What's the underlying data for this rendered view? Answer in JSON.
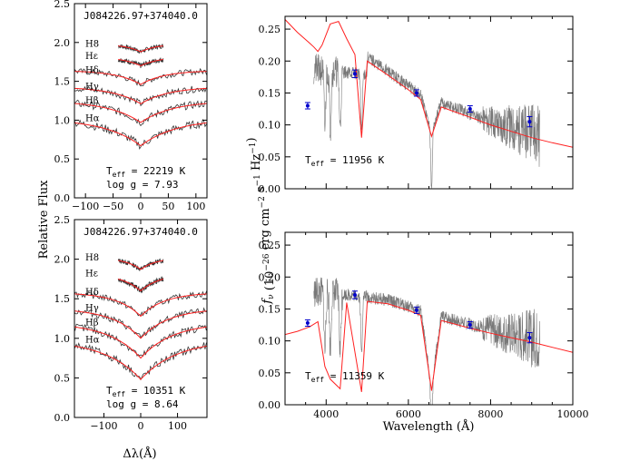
{
  "colors": {
    "model": "#ff2020",
    "spectrum": "#777777",
    "photometry": "#0000cc",
    "frame": "#000000"
  },
  "figure": {
    "shared_ylabel_left": "Relative Flux",
    "shared_xlabel_left": "Δλ(Å)",
    "ylabel_right": "f_ν (10^-26 erg cm^-2 s^-1 Hz^-1)",
    "xlabel_right": "Wavelength (Å)"
  },
  "chart_data": [
    {
      "type": "line",
      "panel": "top-left",
      "object": "J084226.97+374040.0",
      "line_labels": [
        "H8",
        "Hε",
        "Hδ",
        "Hγ",
        "Hβ",
        "Hα"
      ],
      "offsets": [
        1.98,
        1.82,
        1.64,
        1.43,
        1.25,
        1.02
      ],
      "teff_text": "T_eff = 22219 K",
      "logg_text": "log g = 7.93",
      "xlim": [
        -120,
        120
      ],
      "ylim": [
        0.0,
        2.5
      ],
      "xticks": [
        -100,
        -50,
        0,
        50,
        100
      ],
      "yticks": [
        0.0,
        0.5,
        1.0,
        1.5,
        2.0,
        2.5
      ],
      "depth": [
        0.1,
        0.12,
        0.18,
        0.22,
        0.28,
        0.35
      ]
    },
    {
      "type": "line",
      "panel": "bottom-left",
      "object": "J084226.97+374040.0",
      "line_labels": [
        "H8",
        "Hε",
        "Hδ",
        "Hγ",
        "Hβ",
        "Hα"
      ],
      "offsets": [
        2.02,
        1.82,
        1.58,
        1.38,
        1.2,
        0.98
      ],
      "teff_text": "T_eff = 10351 K",
      "logg_text": "log g = 8.64",
      "xlim": [
        -180,
        180
      ],
      "ylim": [
        0.0,
        2.5
      ],
      "xticks": [
        -100,
        0,
        100
      ],
      "yticks": [
        0.0,
        0.5,
        1.0,
        1.5,
        2.0,
        2.5
      ],
      "depth": [
        0.15,
        0.22,
        0.3,
        0.38,
        0.45,
        0.5
      ]
    },
    {
      "type": "line",
      "panel": "top-right",
      "teff_text": "T_eff = 11956 K",
      "xlim": [
        3000,
        10000
      ],
      "ylim": [
        0.0,
        0.27
      ],
      "yticks": [
        0.0,
        0.05,
        0.1,
        0.15,
        0.2,
        0.25
      ],
      "xticks": [
        4000,
        6000,
        8000,
        10000
      ],
      "model_points": {
        "x": [
          3000,
          3300,
          3600,
          3700,
          3800,
          3900,
          4100,
          4300,
          4500,
          4700,
          4861,
          5000,
          5500,
          6000,
          6300,
          6563,
          6800,
          7500,
          8000,
          8500,
          9000,
          9500,
          10000
        ],
        "y": [
          0.265,
          0.245,
          0.228,
          0.222,
          0.215,
          0.225,
          0.258,
          0.262,
          0.235,
          0.21,
          0.08,
          0.2,
          0.178,
          0.155,
          0.14,
          0.082,
          0.128,
          0.112,
          0.1,
          0.09,
          0.08,
          0.072,
          0.065
        ]
      },
      "spectrum_range": [
        3700,
        9200
      ],
      "photometry": {
        "x": [
          3550,
          4700,
          6200,
          7500,
          8950
        ],
        "y": [
          0.13,
          0.18,
          0.15,
          0.125,
          0.105
        ],
        "yerr": [
          0.005,
          0.006,
          0.005,
          0.005,
          0.008
        ]
      }
    },
    {
      "type": "line",
      "panel": "bottom-right",
      "teff_text": "T_eff = 11359 K",
      "xlim": [
        3000,
        10000
      ],
      "ylim": [
        0.0,
        0.27
      ],
      "yticks": [
        0.0,
        0.05,
        0.1,
        0.15,
        0.2,
        0.25
      ],
      "xticks": [
        4000,
        6000,
        8000,
        10000
      ],
      "model_points": {
        "x": [
          3000,
          3300,
          3600,
          3800,
          3970,
          4102,
          4340,
          4500,
          4861,
          5000,
          5500,
          6000,
          6300,
          6563,
          6800,
          7500,
          8000,
          8500,
          9000,
          9500,
          10000
        ],
        "y": [
          0.11,
          0.115,
          0.122,
          0.13,
          0.06,
          0.04,
          0.025,
          0.16,
          0.02,
          0.162,
          0.158,
          0.148,
          0.14,
          0.022,
          0.132,
          0.12,
          0.112,
          0.105,
          0.098,
          0.09,
          0.082
        ]
      },
      "spectrum_range": [
        3700,
        9200
      ],
      "photometry": {
        "x": [
          3550,
          4700,
          6200,
          7500,
          8950
        ],
        "y": [
          0.128,
          0.172,
          0.148,
          0.125,
          0.105
        ],
        "yerr": [
          0.005,
          0.006,
          0.005,
          0.005,
          0.008
        ]
      }
    }
  ]
}
